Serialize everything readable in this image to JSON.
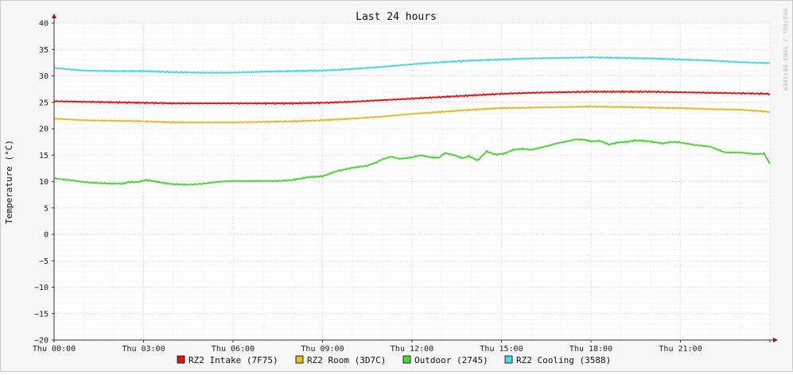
{
  "chart_data": {
    "type": "line",
    "title": "Last 24 hours",
    "ylabel": "Temperature (°C)",
    "xlabel": "",
    "watermark": "RRDTOOL / TOBI OETIKER",
    "ylim": [
      -20,
      40
    ],
    "xlim": [
      0,
      24
    ],
    "grid": true,
    "legend_position": "bottom",
    "y_ticks": [
      "40",
      "35",
      "30",
      "25",
      "20",
      "15",
      "10",
      "5",
      "0",
      "−5",
      "−10",
      "−15",
      "−20"
    ],
    "x_ticks": [
      "Thu 00:00",
      "Thu 03:00",
      "Thu 06:00",
      "Thu 09:00",
      "Thu 12:00",
      "Thu 15:00",
      "Thu 18:00",
      "Thu 21:00"
    ],
    "x_units": "hours",
    "series": [
      {
        "name": "RZ2 Intake (7F75)",
        "color": "#e11919",
        "points": [
          [
            0,
            25.2
          ],
          [
            1,
            25.1
          ],
          [
            2,
            25.0
          ],
          [
            3,
            24.9
          ],
          [
            4,
            24.8
          ],
          [
            5,
            24.8
          ],
          [
            6,
            24.8
          ],
          [
            7,
            24.8
          ],
          [
            8,
            24.8
          ],
          [
            9,
            24.9
          ],
          [
            10,
            25.1
          ],
          [
            11,
            25.4
          ],
          [
            12,
            25.7
          ],
          [
            13,
            26.0
          ],
          [
            14,
            26.3
          ],
          [
            15,
            26.6
          ],
          [
            16,
            26.8
          ],
          [
            17,
            26.9
          ],
          [
            18,
            27.0
          ],
          [
            19,
            27.0
          ],
          [
            20,
            27.0
          ],
          [
            21,
            26.9
          ],
          [
            22,
            26.8
          ],
          [
            23,
            26.7
          ],
          [
            24,
            26.6
          ]
        ]
      },
      {
        "name": "RZ2 Room (3D7C)",
        "color": "#e6bc2c",
        "points": [
          [
            0,
            21.9
          ],
          [
            1,
            21.6
          ],
          [
            2,
            21.5
          ],
          [
            3,
            21.4
          ],
          [
            4,
            21.2
          ],
          [
            5,
            21.2
          ],
          [
            6,
            21.2
          ],
          [
            7,
            21.3
          ],
          [
            8,
            21.4
          ],
          [
            9,
            21.6
          ],
          [
            10,
            21.9
          ],
          [
            11,
            22.3
          ],
          [
            12,
            22.8
          ],
          [
            13,
            23.2
          ],
          [
            14,
            23.6
          ],
          [
            15,
            23.9
          ],
          [
            16,
            24.0
          ],
          [
            17,
            24.1
          ],
          [
            18,
            24.2
          ],
          [
            19,
            24.1
          ],
          [
            20,
            24.0
          ],
          [
            21,
            23.9
          ],
          [
            22,
            23.7
          ],
          [
            23,
            23.6
          ],
          [
            24,
            23.2
          ]
        ]
      },
      {
        "name": "Outdoor (2745)",
        "color": "#4fd43d",
        "points": [
          [
            0,
            10.6
          ],
          [
            0.5,
            10.3
          ],
          [
            1,
            9.9
          ],
          [
            1.5,
            9.7
          ],
          [
            2,
            9.6
          ],
          [
            2.3,
            9.6
          ],
          [
            2.5,
            9.9
          ],
          [
            2.8,
            9.9
          ],
          [
            3.1,
            10.3
          ],
          [
            3.4,
            10.0
          ],
          [
            3.7,
            9.7
          ],
          [
            4,
            9.5
          ],
          [
            4.5,
            9.4
          ],
          [
            5,
            9.6
          ],
          [
            5.3,
            9.8
          ],
          [
            5.6,
            10.0
          ],
          [
            6,
            10.1
          ],
          [
            6.5,
            10.1
          ],
          [
            7,
            10.1
          ],
          [
            7.5,
            10.1
          ],
          [
            8,
            10.3
          ],
          [
            8.5,
            10.8
          ],
          [
            9,
            11.0
          ],
          [
            9.5,
            12.0
          ],
          [
            10,
            12.6
          ],
          [
            10.5,
            13.0
          ],
          [
            10.8,
            13.6
          ],
          [
            11,
            14.2
          ],
          [
            11.3,
            14.7
          ],
          [
            11.6,
            14.3
          ],
          [
            12,
            14.6
          ],
          [
            12.3,
            15.0
          ],
          [
            12.6,
            14.6
          ],
          [
            12.9,
            14.5
          ],
          [
            13.1,
            15.4
          ],
          [
            13.4,
            15.0
          ],
          [
            13.7,
            14.4
          ],
          [
            13.9,
            14.8
          ],
          [
            14.2,
            14.0
          ],
          [
            14.5,
            15.7
          ],
          [
            14.8,
            15.1
          ],
          [
            15.1,
            15.3
          ],
          [
            15.4,
            16.0
          ],
          [
            15.7,
            16.2
          ],
          [
            16.0,
            16.0
          ],
          [
            16.3,
            16.4
          ],
          [
            16.6,
            16.8
          ],
          [
            16.9,
            17.3
          ],
          [
            17.2,
            17.6
          ],
          [
            17.5,
            18.0
          ],
          [
            17.8,
            17.9
          ],
          [
            18.0,
            17.6
          ],
          [
            18.3,
            17.7
          ],
          [
            18.6,
            17.0
          ],
          [
            18.9,
            17.4
          ],
          [
            19.2,
            17.5
          ],
          [
            19.5,
            17.8
          ],
          [
            19.8,
            17.7
          ],
          [
            20.1,
            17.5
          ],
          [
            20.4,
            17.2
          ],
          [
            20.7,
            17.5
          ],
          [
            21.0,
            17.4
          ],
          [
            21.5,
            16.9
          ],
          [
            22,
            16.6
          ],
          [
            22.5,
            15.5
          ],
          [
            23,
            15.5
          ],
          [
            23.5,
            15.2
          ],
          [
            23.8,
            15.3
          ],
          [
            24,
            13.4
          ]
        ]
      },
      {
        "name": "RZ2 Cooling (3588)",
        "color": "#4bd9e0",
        "points": [
          [
            0,
            31.5
          ],
          [
            1,
            31.0
          ],
          [
            2,
            30.9
          ],
          [
            3,
            30.9
          ],
          [
            4,
            30.7
          ],
          [
            5,
            30.6
          ],
          [
            6,
            30.6
          ],
          [
            7,
            30.8
          ],
          [
            8,
            30.9
          ],
          [
            9,
            31.0
          ],
          [
            10,
            31.3
          ],
          [
            11,
            31.7
          ],
          [
            12,
            32.2
          ],
          [
            13,
            32.6
          ],
          [
            14,
            32.9
          ],
          [
            15,
            33.1
          ],
          [
            16,
            33.3
          ],
          [
            17,
            33.4
          ],
          [
            18,
            33.5
          ],
          [
            19,
            33.4
          ],
          [
            20,
            33.3
          ],
          [
            21,
            33.1
          ],
          [
            22,
            32.9
          ],
          [
            23,
            32.6
          ],
          [
            24,
            32.4
          ]
        ]
      }
    ]
  }
}
